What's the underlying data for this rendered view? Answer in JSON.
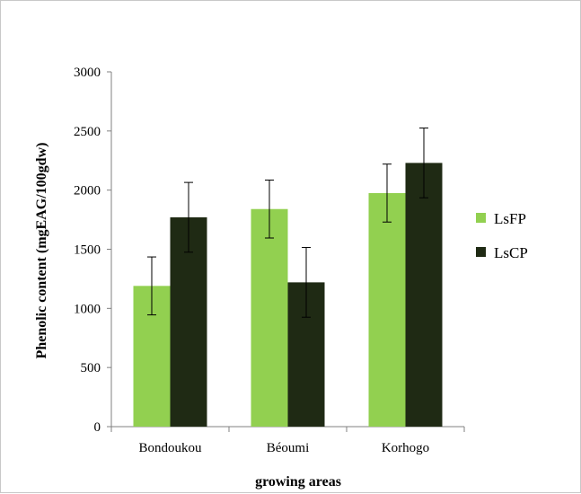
{
  "chart_data": {
    "type": "bar",
    "categories": [
      "Bondoukou",
      "Béoumi",
      "Korhogo"
    ],
    "series": [
      {
        "name": "LsFP",
        "values": [
          1190,
          1840,
          1975
        ],
        "errors": [
          245,
          245,
          245
        ],
        "color": "#92d050"
      },
      {
        "name": "LsCP",
        "values": [
          1770,
          1220,
          2230
        ],
        "errors": [
          295,
          295,
          295
        ],
        "color": "#1f2a14"
      }
    ],
    "xlabel": "growing areas",
    "ylabel": "Phenolic content (mgEAG/100gdw)",
    "ylim": [
      0,
      3000
    ],
    "yticks": [
      0,
      500,
      1000,
      1500,
      2000,
      2500,
      3000
    ],
    "grid": false,
    "legend_position": "right"
  }
}
